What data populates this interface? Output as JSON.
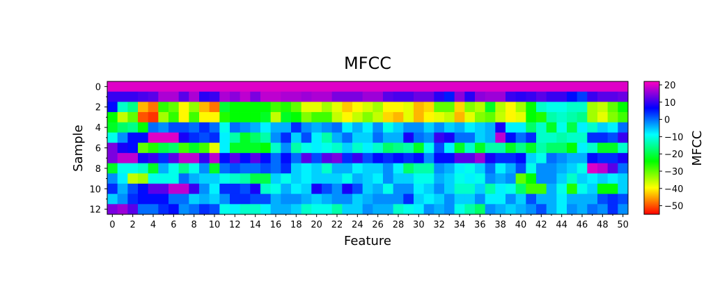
{
  "chart_data": {
    "type": "heatmap",
    "title": "MFCC",
    "xlabel": "Feature",
    "ylabel": "Sample",
    "colorbar_label": "MFCC",
    "colormap": "gist_rainbow_r",
    "vmin": -55,
    "vmax": 22,
    "x_ticks": [
      0,
      2,
      4,
      6,
      8,
      10,
      12,
      14,
      16,
      18,
      20,
      22,
      24,
      26,
      28,
      30,
      32,
      34,
      36,
      38,
      40,
      42,
      44,
      46,
      48,
      50
    ],
    "y_ticks": [
      0,
      2,
      4,
      6,
      8,
      10,
      12
    ],
    "colorbar_ticks": [
      20,
      10,
      0,
      -10,
      -20,
      -30,
      -40,
      -50
    ],
    "n_features": 51,
    "n_samples": 13,
    "values": [
      [
        20,
        20,
        20,
        20,
        20,
        20,
        20,
        20,
        20,
        20,
        20,
        20,
        20,
        20,
        20,
        20,
        20,
        20,
        20,
        20,
        20,
        20,
        20,
        20,
        20,
        20,
        20,
        20,
        20,
        20,
        20,
        20,
        20,
        20,
        20,
        20,
        20,
        20,
        20,
        20,
        20,
        20,
        20,
        20,
        20,
        20,
        20,
        20,
        20,
        20,
        20
      ],
      [
        10,
        10,
        10,
        11,
        12,
        17,
        17,
        12,
        17,
        9,
        10,
        17,
        15,
        18,
        14,
        18,
        18,
        17,
        17,
        16,
        17,
        17,
        14,
        14,
        14,
        16,
        16,
        12,
        11,
        11,
        13,
        13,
        9,
        5,
        15,
        9,
        15,
        16,
        16,
        10,
        9,
        10,
        12,
        10,
        10,
        6,
        3,
        10,
        12,
        12,
        13
      ],
      [
        6,
        -12,
        -16,
        -44,
        -48,
        -27,
        -30,
        -40,
        -33,
        -44,
        -48,
        -21,
        -24,
        -24,
        -24,
        -24,
        -28,
        -26,
        -30,
        -38,
        -38,
        -34,
        -38,
        -43,
        -40,
        -37,
        -34,
        -40,
        -40,
        -38,
        -44,
        -42,
        -30,
        -30,
        -42,
        -32,
        -35,
        -22,
        -35,
        -40,
        -34,
        -24,
        -12,
        -10,
        -10,
        -12,
        -12,
        -34,
        -36,
        -30,
        -24
      ],
      [
        -24,
        -36,
        -30,
        -50,
        -52,
        -34,
        -27,
        -40,
        -28,
        -40,
        -40,
        -26,
        -24,
        -24,
        -24,
        -22,
        -36,
        -22,
        -24,
        -32,
        -28,
        -28,
        -36,
        -40,
        -36,
        -32,
        -36,
        -42,
        -44,
        -38,
        -44,
        -40,
        -38,
        -36,
        -44,
        -38,
        -32,
        -30,
        -36,
        -40,
        -38,
        -24,
        -26,
        -14,
        -12,
        -14,
        -16,
        -34,
        -38,
        -32,
        -28
      ],
      [
        -22,
        -18,
        -16,
        -24,
        0,
        -2,
        2,
        2,
        0,
        4,
        0,
        -10,
        0,
        -2,
        -4,
        -8,
        -4,
        -4,
        4,
        -2,
        -4,
        -2,
        0,
        -8,
        -4,
        -8,
        -2,
        -10,
        -6,
        -2,
        -2,
        -6,
        -2,
        -6,
        -4,
        -8,
        -6,
        -4,
        8,
        -8,
        -8,
        -18,
        -12,
        -22,
        -10,
        -20,
        -8,
        -12,
        -6,
        -8,
        0
      ],
      [
        -10,
        -2,
        6,
        6,
        20,
        20,
        20,
        8,
        4,
        2,
        4,
        -8,
        -14,
        -22,
        -18,
        -14,
        -2,
        4,
        -6,
        2,
        -8,
        -14,
        -4,
        0,
        -6,
        -6,
        0,
        -4,
        -4,
        8,
        0,
        -2,
        10,
        8,
        0,
        0,
        -6,
        -4,
        18,
        6,
        0,
        4,
        -12,
        -12,
        -14,
        -12,
        -12,
        4,
        4,
        2,
        10
      ],
      [
        14,
        8,
        6,
        -30,
        -26,
        -20,
        -18,
        -28,
        -22,
        -28,
        -38,
        -8,
        -22,
        -22,
        -22,
        -24,
        -12,
        -2,
        -14,
        -10,
        -8,
        -10,
        -12,
        -6,
        -12,
        -8,
        -12,
        -18,
        -16,
        -14,
        -22,
        -10,
        2,
        -8,
        -22,
        -12,
        -22,
        -14,
        -14,
        -22,
        -16,
        -22,
        -14,
        -18,
        -18,
        -24,
        -8,
        -12,
        -22,
        -22,
        -12
      ],
      [
        14,
        18,
        18,
        8,
        10,
        4,
        12,
        18,
        18,
        10,
        18,
        6,
        12,
        6,
        12,
        6,
        0,
        6,
        0,
        12,
        2,
        12,
        14,
        4,
        10,
        2,
        6,
        4,
        6,
        4,
        6,
        -2,
        6,
        6,
        12,
        12,
        16,
        8,
        4,
        4,
        6,
        -6,
        -10,
        0,
        -2,
        -4,
        -4,
        6,
        4,
        4,
        8
      ],
      [
        -22,
        -10,
        -10,
        -12,
        -22,
        -4,
        -10,
        -16,
        -10,
        -2,
        -22,
        0,
        2,
        0,
        0,
        2,
        0,
        4,
        -6,
        -8,
        -6,
        -12,
        -4,
        -4,
        -8,
        -6,
        -6,
        -2,
        -8,
        -18,
        -14,
        -14,
        -2,
        -4,
        -8,
        -10,
        -6,
        0,
        -8,
        -4,
        2,
        -10,
        -2,
        -2,
        -4,
        -6,
        -10,
        20,
        18,
        12,
        0
      ],
      [
        -2,
        -8,
        -36,
        -34,
        -10,
        -10,
        -10,
        0,
        -4,
        -6,
        -6,
        -10,
        -12,
        -14,
        -20,
        -20,
        -6,
        -10,
        -6,
        -8,
        -6,
        -6,
        -6,
        -10,
        -4,
        -6,
        -8,
        -2,
        -6,
        -6,
        -10,
        -10,
        -4,
        -6,
        -10,
        -8,
        -10,
        -2,
        -4,
        -2,
        -30,
        -24,
        -2,
        -2,
        -6,
        -12,
        -6,
        -8,
        -6,
        -8,
        -6
      ],
      [
        4,
        -4,
        2,
        6,
        12,
        12,
        18,
        18,
        10,
        -2,
        -8,
        4,
        4,
        2,
        8,
        -12,
        -10,
        -4,
        -8,
        -6,
        8,
        2,
        -2,
        8,
        2,
        -6,
        -4,
        -10,
        -2,
        -2,
        -8,
        -6,
        -2,
        -6,
        -12,
        -12,
        -6,
        -14,
        -8,
        -10,
        -18,
        -28,
        -28,
        -4,
        -10,
        -26,
        -10,
        -6,
        -24,
        -24,
        -6
      ],
      [
        -6,
        -2,
        4,
        6,
        6,
        6,
        0,
        0,
        -6,
        -4,
        -6,
        -2,
        4,
        4,
        2,
        2,
        -4,
        -2,
        -2,
        -4,
        -6,
        -4,
        -2,
        -2,
        -6,
        -4,
        -2,
        -2,
        -2,
        4,
        -6,
        -8,
        -6,
        -2,
        -6,
        -6,
        -2,
        -8,
        -8,
        -2,
        -6,
        2,
        -4,
        -4,
        -8,
        -4,
        -4,
        -4,
        2,
        4,
        2
      ],
      [
        14,
        16,
        12,
        0,
        0,
        4,
        6,
        -2,
        0,
        4,
        2,
        -10,
        -8,
        -12,
        -12,
        -8,
        -4,
        -4,
        -6,
        -12,
        -10,
        -10,
        -14,
        -6,
        -6,
        -2,
        -4,
        -4,
        -12,
        -10,
        -8,
        -2,
        -4,
        -2,
        -10,
        -14,
        -18,
        -2,
        -4,
        -6,
        -4,
        -2,
        2,
        -4,
        -8,
        -2,
        -4,
        0,
        -2,
        4,
        -2
      ]
    ]
  }
}
